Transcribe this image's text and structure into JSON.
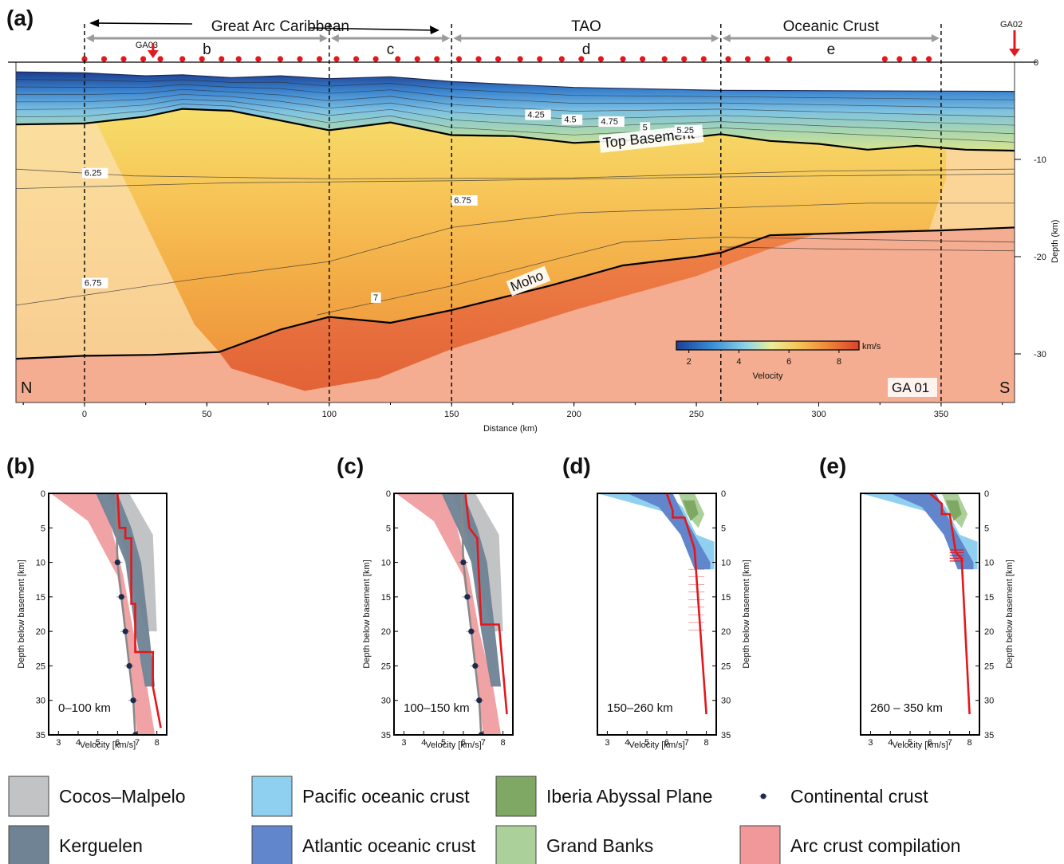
{
  "panels": {
    "a": "(a)",
    "b": "(b)",
    "c": "(c)",
    "d": "(d)",
    "e": "(e)"
  },
  "top": {
    "segments": [
      {
        "key": "b",
        "label": "b",
        "from": 0,
        "to": 100
      },
      {
        "key": "c",
        "label": "c",
        "from": 100,
        "to": 150
      },
      {
        "key": "d",
        "label": "d",
        "from": 150,
        "to": 260
      },
      {
        "key": "e",
        "label": "e",
        "from": 260,
        "to": 350
      }
    ],
    "groups": [
      {
        "label": "Great   Arc  Caribbean",
        "from": 0,
        "to": 150
      },
      {
        "label": "TAO",
        "from": 150,
        "to": 260
      },
      {
        "label": "Oceanic Crust",
        "from": 260,
        "to": 350
      }
    ],
    "markers": [
      {
        "label": "GA03",
        "x": 28
      },
      {
        "label": "GA02",
        "x": 380
      }
    ],
    "stations_km": [
      0,
      8,
      16,
      24,
      31,
      40,
      48,
      56,
      63,
      71,
      80,
      88,
      96,
      103,
      111,
      119,
      128,
      136,
      144,
      153,
      161,
      169,
      178,
      186,
      195,
      203,
      211,
      220,
      228,
      237,
      245,
      253,
      263,
      271,
      279,
      288,
      327,
      333,
      339,
      345
    ]
  },
  "section": {
    "left_label": "N",
    "right_label": "S",
    "profile_label": "GA 01",
    "xlabel": "Distance (km)",
    "ylabel": "Depth (km)",
    "xticks": [
      0,
      50,
      100,
      150,
      200,
      250,
      300,
      350
    ],
    "yticks": [
      0,
      -10,
      -20,
      -30
    ],
    "xlim": [
      -28,
      380
    ],
    "ylim": [
      0,
      -35
    ],
    "boundaries_km": [
      0,
      100,
      150,
      260,
      350
    ],
    "top_basement": {
      "label": "Top Basement",
      "x": [
        -28,
        0,
        25,
        40,
        60,
        80,
        100,
        125,
        150,
        175,
        200,
        225,
        250,
        260,
        280,
        300,
        320,
        340,
        360,
        380
      ],
      "y": [
        -6.4,
        -6.3,
        -5.6,
        -4.8,
        -5.0,
        -6.0,
        -7.0,
        -6.2,
        -7.5,
        -7.6,
        -8.3,
        -8.0,
        -7.7,
        -7.4,
        -8.1,
        -8.4,
        -9.0,
        -8.6,
        -9.0,
        -9.1
      ]
    },
    "moho": {
      "label": "Moho",
      "x": [
        -28,
        0,
        28,
        55,
        80,
        100,
        125,
        150,
        190,
        220,
        250,
        260,
        280,
        320,
        350,
        380
      ],
      "y": [
        -30.5,
        -30.2,
        -30.1,
        -29.8,
        -27.5,
        -26.2,
        -26.8,
        -25.5,
        -23.0,
        -20.9,
        -20.0,
        -19.6,
        -17.8,
        -17.5,
        -17.3,
        -17.0
      ]
    },
    "velocity_labels": [
      {
        "text": "4.25",
        "x": 181,
        "y": -5.7
      },
      {
        "text": "4.5",
        "x": 196,
        "y": -6.2
      },
      {
        "text": "4.75",
        "x": 211,
        "y": -6.4
      },
      {
        "text": "5",
        "x": 228,
        "y": -7.0
      },
      {
        "text": "5.25",
        "x": 242,
        "y": -7.3
      },
      {
        "text": "6.25",
        "x": 0,
        "y": -11.7
      },
      {
        "text": "6.75",
        "x": 151,
        "y": -14.5
      },
      {
        "text": "6.75",
        "x": 0,
        "y": -23.0
      },
      {
        "text": "7",
        "x": 118,
        "y": -24.5
      }
    ],
    "colorbar": {
      "label": "Velocity",
      "unit": "km/s",
      "ticks": [
        2,
        4,
        6,
        8
      ],
      "range": [
        1.5,
        8.8
      ]
    }
  },
  "profiles": [
    {
      "key": "b",
      "range_label": "0–100 km",
      "xlabel": "Velocity [km/s]",
      "ylabel": "Depth below basement [km]",
      "xlim": [
        2.5,
        8.5
      ],
      "ylim": [
        0,
        35
      ],
      "xticks": [
        3,
        4,
        5,
        6,
        7,
        8
      ],
      "yticks": [
        0,
        5,
        10,
        15,
        20,
        25,
        30,
        35
      ],
      "red_step": {
        "v": [
          6.0,
          6.1,
          6.4,
          6.4,
          6.7,
          6.7,
          6.9,
          6.9,
          7.8,
          7.8,
          8.2
        ],
        "z": [
          0,
          5.0,
          5.0,
          6.5,
          6.5,
          16.0,
          16.0,
          23.0,
          23.0,
          28.0,
          34.0
        ]
      },
      "continental": {
        "v": [
          6.0,
          6.2,
          6.4,
          6.6,
          6.8,
          6.9
        ],
        "z": [
          10,
          15,
          20,
          25,
          30,
          35
        ]
      }
    },
    {
      "key": "c",
      "range_label": "100–150 km",
      "xlabel": "Velocity [km/s]",
      "ylabel": "Depth below basement [km]",
      "xlim": [
        2.5,
        8.5
      ],
      "ylim": [
        0,
        35
      ],
      "xticks": [
        3,
        4,
        5,
        6,
        7,
        8
      ],
      "yticks": [
        0,
        5,
        10,
        15,
        20,
        25,
        30,
        35
      ],
      "red_step": {
        "v": [
          6.1,
          6.3,
          6.3,
          6.7,
          6.9,
          6.9,
          7.8,
          8.2
        ],
        "z": [
          0,
          5.0,
          5.0,
          6.5,
          19.0,
          19.0,
          19.0,
          32.0
        ]
      },
      "continental": {
        "v": [
          6.0,
          6.2,
          6.4,
          6.6,
          6.8,
          6.9
        ],
        "z": [
          10,
          15,
          20,
          25,
          30,
          35
        ]
      }
    },
    {
      "key": "d",
      "range_label": "150–260 km",
      "xlabel": "Velocity [km/s]",
      "ylabel": "Depth below basement [km]",
      "xlim": [
        2.5,
        8.5
      ],
      "ylim": [
        0,
        35
      ],
      "xticks": [
        3,
        4,
        5,
        6,
        7,
        8
      ],
      "yticks": [
        0,
        5,
        10,
        15,
        20,
        25,
        30,
        35
      ],
      "red_step": {
        "v": [
          6.0,
          6.3,
          6.3,
          6.9,
          7.4,
          8.0
        ],
        "z": [
          0,
          2.5,
          3.5,
          3.5,
          8.0,
          32.0
        ]
      }
    },
    {
      "key": "e",
      "range_label": "260 – 350 km",
      "xlabel": "Velocity [km/s]",
      "ylabel": "Depth below basement [km]",
      "xlim": [
        2.5,
        8.5
      ],
      "ylim": [
        0,
        35
      ],
      "xticks": [
        3,
        4,
        5,
        6,
        7,
        8
      ],
      "yticks": [
        0,
        5,
        10,
        15,
        20,
        25,
        30,
        35
      ],
      "red_step": {
        "v": [
          6.0,
          6.6,
          6.6,
          7.0,
          7.3,
          7.6,
          8.0
        ],
        "z": [
          0,
          1.5,
          3.0,
          3.0,
          8.5,
          9.5,
          32.0
        ]
      }
    }
  ],
  "legend": [
    {
      "label": "Cocos–Malpelo",
      "color": "#c2c3c5",
      "kind": "swatch"
    },
    {
      "label": "Pacific oceanic crust",
      "color": "#8fd0f0",
      "kind": "swatch"
    },
    {
      "label": "Iberia Abyssal Plane",
      "color": "#7fa864",
      "kind": "swatch"
    },
    {
      "label": "Continental crust",
      "color": "#1c2a4d",
      "kind": "dot"
    },
    {
      "label": "Kerguelen",
      "color": "#6f8395",
      "kind": "swatch"
    },
    {
      "label": "Atlantic oceanic crust",
      "color": "#6186cc",
      "kind": "swatch"
    },
    {
      "label": "Grand Banks",
      "color": "#acd09a",
      "kind": "swatch"
    },
    {
      "label": "Arc crust compilation",
      "color": "#f0989a",
      "kind": "swatch"
    }
  ]
}
